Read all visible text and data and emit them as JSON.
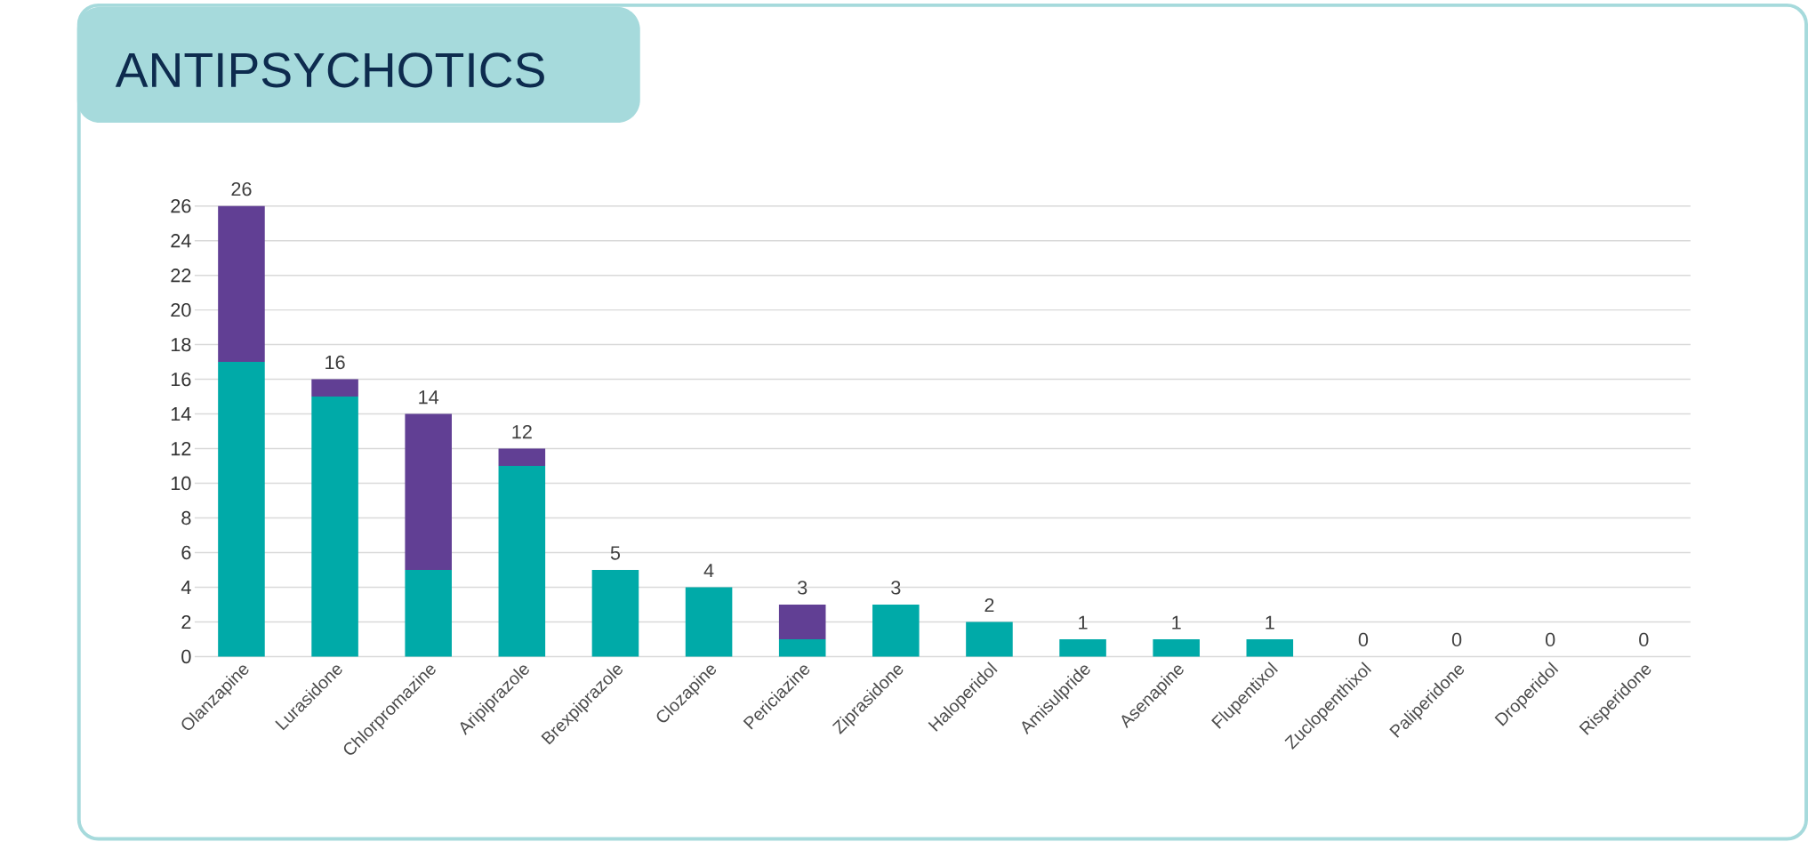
{
  "chart_data": {
    "type": "bar",
    "title": "ANTIPSYCHOTICS",
    "categories": [
      "Olanzapine",
      "Lurasidone",
      "Chlorpromazine",
      "Aripiprazole",
      "Brexpiprazole",
      "Clozapine",
      "Periciazine",
      "Ziprasidone",
      "Haloperidol",
      "Amisulpride",
      "Asenapine",
      "Flupentixol",
      "Zuclopenthixol",
      "Paliperidone",
      "Droperidol",
      "Risperidone"
    ],
    "series": [
      {
        "color": "#00aaa8",
        "values": [
          17,
          15,
          5,
          11,
          5,
          4,
          1,
          3,
          2,
          1,
          1,
          1,
          0,
          0,
          0,
          0
        ]
      },
      {
        "color": "#613f94",
        "values": [
          9,
          1,
          9,
          1,
          0,
          0,
          2,
          0,
          0,
          0,
          0,
          0,
          0,
          0,
          0,
          0
        ]
      }
    ],
    "stacked": true,
    "totals": [
      "26",
      "16",
      "14",
      "12",
      "5",
      "4",
      "3",
      "3",
      "2",
      "1",
      "1",
      "1",
      "0",
      "0",
      "0",
      "0"
    ],
    "ylim": [
      0,
      26
    ],
    "yticks": [
      0,
      2,
      4,
      6,
      8,
      10,
      12,
      14,
      16,
      18,
      20,
      22,
      24,
      26
    ],
    "grid": "y"
  }
}
